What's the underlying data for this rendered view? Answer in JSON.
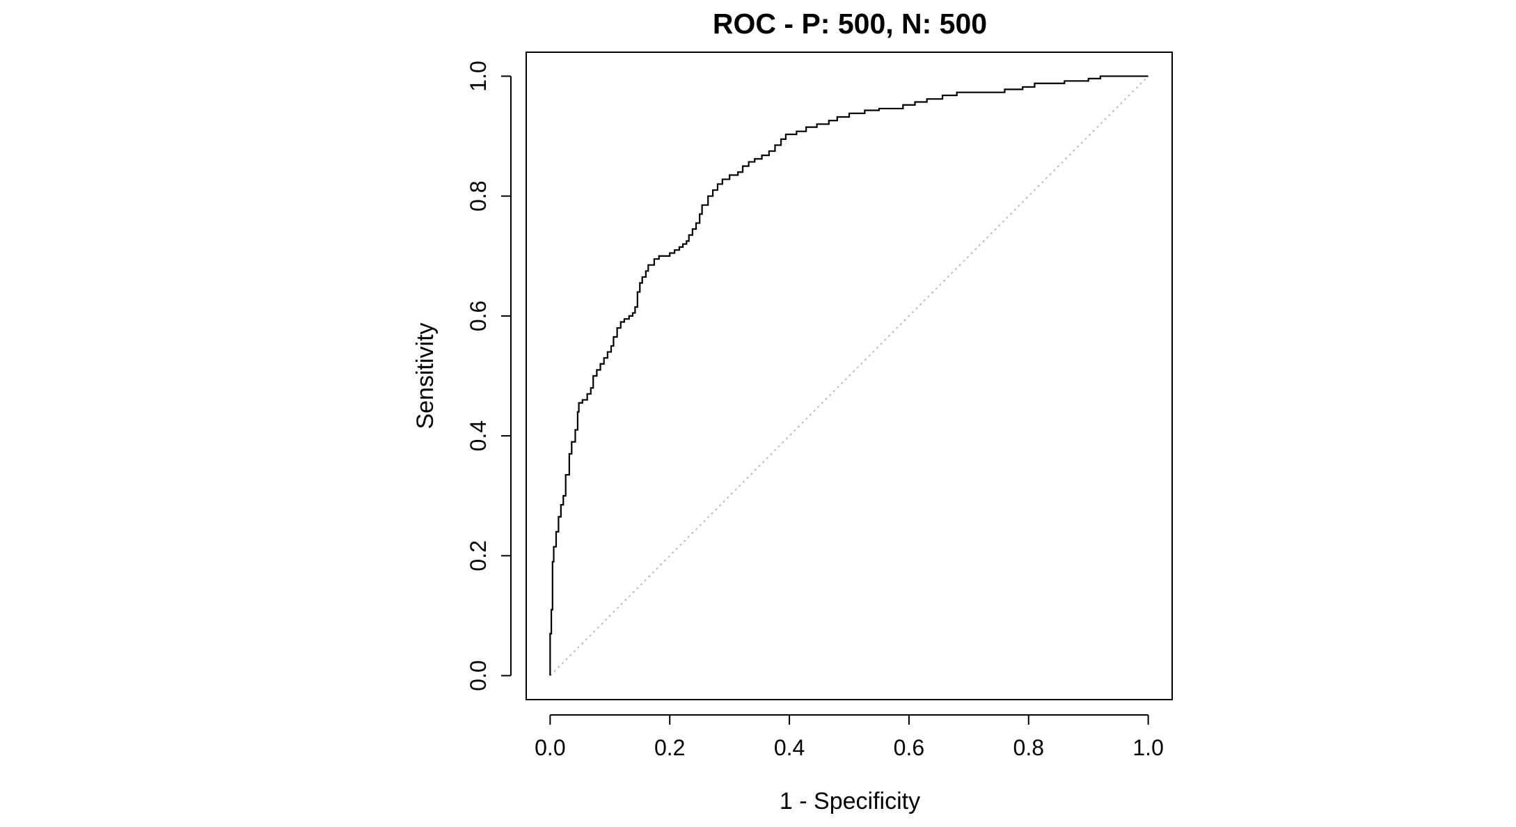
{
  "chart_data": {
    "type": "line",
    "title": "ROC - P: 500, N: 500",
    "xlabel": "1 - Specificity",
    "ylabel": "Sensitivity",
    "xlim": [
      -0.04,
      1.04
    ],
    "ylim": [
      -0.04,
      1.04
    ],
    "x_ticks": [
      0.0,
      0.2,
      0.4,
      0.6,
      0.8,
      1.0
    ],
    "y_ticks": [
      0.0,
      0.2,
      0.4,
      0.6,
      0.8,
      1.0
    ],
    "x_tick_labels": [
      "0.0",
      "0.2",
      "0.4",
      "0.6",
      "0.8",
      "1.0"
    ],
    "y_tick_labels": [
      "0.0",
      "0.2",
      "0.4",
      "0.6",
      "0.8",
      "1.0"
    ],
    "grid": false,
    "reference_line": {
      "from": [
        0,
        0
      ],
      "to": [
        1,
        1
      ],
      "style": "dotted",
      "color": "#bbbbbb"
    },
    "line_color": "#000000",
    "series": [
      {
        "points": [
          [
            0.0,
            0.0
          ],
          [
            0.0,
            0.07
          ],
          [
            0.002,
            0.07
          ],
          [
            0.002,
            0.11
          ],
          [
            0.004,
            0.11
          ],
          [
            0.004,
            0.19
          ],
          [
            0.006,
            0.19
          ],
          [
            0.006,
            0.215
          ],
          [
            0.01,
            0.215
          ],
          [
            0.01,
            0.24
          ],
          [
            0.014,
            0.24
          ],
          [
            0.014,
            0.265
          ],
          [
            0.018,
            0.265
          ],
          [
            0.018,
            0.285
          ],
          [
            0.022,
            0.285
          ],
          [
            0.022,
            0.3
          ],
          [
            0.026,
            0.3
          ],
          [
            0.026,
            0.335
          ],
          [
            0.032,
            0.335
          ],
          [
            0.032,
            0.37
          ],
          [
            0.036,
            0.37
          ],
          [
            0.036,
            0.39
          ],
          [
            0.042,
            0.39
          ],
          [
            0.042,
            0.41
          ],
          [
            0.046,
            0.41
          ],
          [
            0.046,
            0.44
          ],
          [
            0.048,
            0.44
          ],
          [
            0.048,
            0.455
          ],
          [
            0.054,
            0.455
          ],
          [
            0.054,
            0.46
          ],
          [
            0.062,
            0.46
          ],
          [
            0.062,
            0.47
          ],
          [
            0.068,
            0.47
          ],
          [
            0.068,
            0.48
          ],
          [
            0.072,
            0.48
          ],
          [
            0.072,
            0.5
          ],
          [
            0.078,
            0.5
          ],
          [
            0.078,
            0.51
          ],
          [
            0.084,
            0.51
          ],
          [
            0.084,
            0.52
          ],
          [
            0.09,
            0.52
          ],
          [
            0.09,
            0.53
          ],
          [
            0.096,
            0.53
          ],
          [
            0.096,
            0.54
          ],
          [
            0.102,
            0.54
          ],
          [
            0.102,
            0.55
          ],
          [
            0.106,
            0.55
          ],
          [
            0.106,
            0.565
          ],
          [
            0.112,
            0.565
          ],
          [
            0.112,
            0.58
          ],
          [
            0.118,
            0.58
          ],
          [
            0.118,
            0.59
          ],
          [
            0.124,
            0.59
          ],
          [
            0.124,
            0.595
          ],
          [
            0.132,
            0.595
          ],
          [
            0.132,
            0.6
          ],
          [
            0.138,
            0.6
          ],
          [
            0.138,
            0.605
          ],
          [
            0.142,
            0.605
          ],
          [
            0.142,
            0.615
          ],
          [
            0.146,
            0.615
          ],
          [
            0.146,
            0.64
          ],
          [
            0.15,
            0.64
          ],
          [
            0.15,
            0.655
          ],
          [
            0.154,
            0.655
          ],
          [
            0.154,
            0.665
          ],
          [
            0.16,
            0.665
          ],
          [
            0.16,
            0.675
          ],
          [
            0.164,
            0.675
          ],
          [
            0.164,
            0.685
          ],
          [
            0.174,
            0.685
          ],
          [
            0.174,
            0.695
          ],
          [
            0.182,
            0.695
          ],
          [
            0.182,
            0.7
          ],
          [
            0.2,
            0.7
          ],
          [
            0.2,
            0.705
          ],
          [
            0.208,
            0.705
          ],
          [
            0.208,
            0.71
          ],
          [
            0.216,
            0.71
          ],
          [
            0.216,
            0.715
          ],
          [
            0.222,
            0.715
          ],
          [
            0.222,
            0.72
          ],
          [
            0.228,
            0.72
          ],
          [
            0.228,
            0.725
          ],
          [
            0.232,
            0.725
          ],
          [
            0.232,
            0.735
          ],
          [
            0.238,
            0.735
          ],
          [
            0.238,
            0.745
          ],
          [
            0.244,
            0.745
          ],
          [
            0.244,
            0.755
          ],
          [
            0.25,
            0.755
          ],
          [
            0.25,
            0.77
          ],
          [
            0.254,
            0.77
          ],
          [
            0.254,
            0.785
          ],
          [
            0.264,
            0.785
          ],
          [
            0.264,
            0.8
          ],
          [
            0.272,
            0.8
          ],
          [
            0.272,
            0.81
          ],
          [
            0.28,
            0.81
          ],
          [
            0.28,
            0.82
          ],
          [
            0.288,
            0.82
          ],
          [
            0.288,
            0.828
          ],
          [
            0.3,
            0.828
          ],
          [
            0.3,
            0.835
          ],
          [
            0.314,
            0.835
          ],
          [
            0.314,
            0.84
          ],
          [
            0.322,
            0.84
          ],
          [
            0.322,
            0.85
          ],
          [
            0.332,
            0.85
          ],
          [
            0.332,
            0.857
          ],
          [
            0.342,
            0.857
          ],
          [
            0.342,
            0.862
          ],
          [
            0.354,
            0.862
          ],
          [
            0.354,
            0.868
          ],
          [
            0.366,
            0.868
          ],
          [
            0.366,
            0.875
          ],
          [
            0.376,
            0.875
          ],
          [
            0.376,
            0.885
          ],
          [
            0.386,
            0.885
          ],
          [
            0.386,
            0.895
          ],
          [
            0.394,
            0.895
          ],
          [
            0.394,
            0.903
          ],
          [
            0.412,
            0.903
          ],
          [
            0.412,
            0.908
          ],
          [
            0.428,
            0.908
          ],
          [
            0.428,
            0.915
          ],
          [
            0.446,
            0.915
          ],
          [
            0.446,
            0.92
          ],
          [
            0.466,
            0.92
          ],
          [
            0.466,
            0.926
          ],
          [
            0.48,
            0.926
          ],
          [
            0.48,
            0.932
          ],
          [
            0.5,
            0.932
          ],
          [
            0.5,
            0.938
          ],
          [
            0.526,
            0.938
          ],
          [
            0.526,
            0.943
          ],
          [
            0.55,
            0.943
          ],
          [
            0.55,
            0.946
          ],
          [
            0.59,
            0.946
          ],
          [
            0.59,
            0.952
          ],
          [
            0.61,
            0.952
          ],
          [
            0.61,
            0.957
          ],
          [
            0.63,
            0.957
          ],
          [
            0.63,
            0.962
          ],
          [
            0.656,
            0.962
          ],
          [
            0.656,
            0.968
          ],
          [
            0.68,
            0.968
          ],
          [
            0.68,
            0.973
          ],
          [
            0.76,
            0.973
          ],
          [
            0.76,
            0.978
          ],
          [
            0.79,
            0.978
          ],
          [
            0.79,
            0.982
          ],
          [
            0.81,
            0.982
          ],
          [
            0.81,
            0.988
          ],
          [
            0.86,
            0.988
          ],
          [
            0.86,
            0.992
          ],
          [
            0.9,
            0.992
          ],
          [
            0.9,
            0.996
          ],
          [
            0.92,
            0.996
          ],
          [
            0.92,
            1.0
          ],
          [
            1.0,
            1.0
          ]
        ]
      }
    ]
  }
}
